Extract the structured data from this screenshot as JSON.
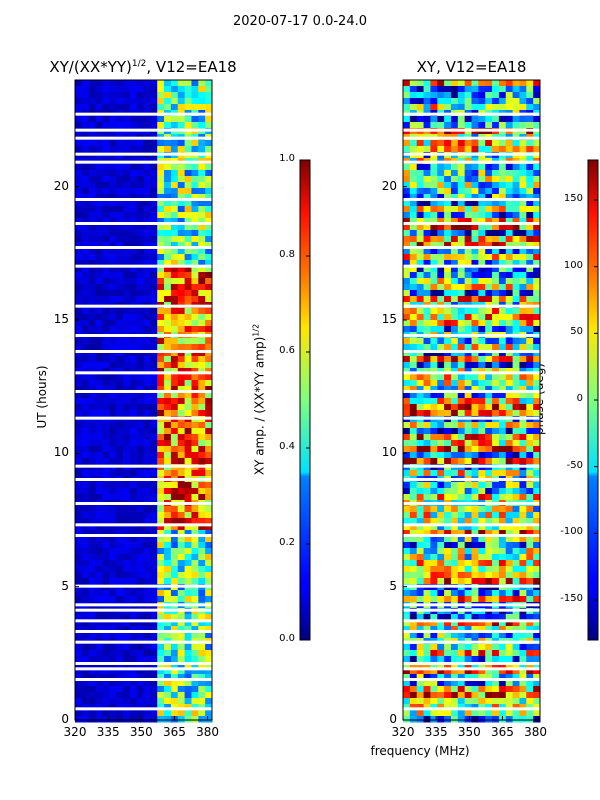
{
  "chart_data": [
    {
      "type": "heatmap",
      "title": "XY/(XX*YY)",
      "title_sup": "1/2",
      "title_suffix": ", V12=EA18",
      "xlabel": "",
      "ylabel": "UT (hours)",
      "xlim": [
        320,
        382
      ],
      "ylim": [
        0,
        24
      ],
      "xticks": [
        "320",
        "335",
        "350",
        "365",
        "380"
      ],
      "yticks": [
        "0",
        "5",
        "10",
        "15",
        "20"
      ],
      "colormap": "jet",
      "colorbar": {
        "label": "XY amp. / (XX*YY amp)",
        "label_sup": "1/2",
        "range": [
          0.0,
          1.0
        ],
        "ticks": [
          "0.0",
          "0.2",
          "0.4",
          "0.6",
          "0.8",
          "1.0"
        ]
      },
      "high_band_mhz": [
        359,
        380
      ],
      "gaps_hours": [
        0.4,
        1.5,
        1.9,
        2.1,
        2.9,
        3.3,
        3.7,
        4.1,
        4.3,
        5.0,
        6.9,
        7.3,
        8.1,
        9.0,
        9.5,
        11.3,
        12.3,
        13.0,
        13.8,
        14.4,
        15.5,
        17.0,
        17.7,
        18.6,
        19.5,
        20.9,
        21.2,
        21.8,
        22.1,
        22.7
      ]
    },
    {
      "type": "heatmap",
      "title": "XY, V12=EA18",
      "xlabel": "frequency (MHz)",
      "ylabel": "",
      "xlim": [
        320,
        382
      ],
      "ylim": [
        0,
        24
      ],
      "xticks": [
        "320",
        "335",
        "350",
        "365",
        "380"
      ],
      "yticks": [
        "0",
        "5",
        "10",
        "15",
        "20"
      ],
      "colormap": "jet",
      "colorbar": {
        "label": "phase (deg)",
        "range": [
          -180,
          180
        ],
        "ticks": [
          "-150",
          "-100",
          "-50",
          "0",
          "50",
          "100",
          "150"
        ]
      },
      "gaps_hours": [
        0.4,
        1.5,
        1.9,
        2.1,
        2.9,
        3.3,
        3.7,
        4.1,
        4.3,
        5.0,
        6.9,
        7.3,
        8.1,
        9.0,
        9.5,
        11.3,
        12.3,
        13.0,
        13.8,
        14.4,
        15.5,
        17.0,
        17.7,
        18.6,
        19.5,
        20.9,
        21.2,
        21.8,
        22.1,
        22.7
      ]
    }
  ],
  "figure": {
    "suptitle": "2020-07-17 0.0-24.0"
  },
  "colors": {
    "jet_low": "#00007f",
    "jet_mid": "#7fff7f",
    "jet_high": "#7f0000"
  }
}
